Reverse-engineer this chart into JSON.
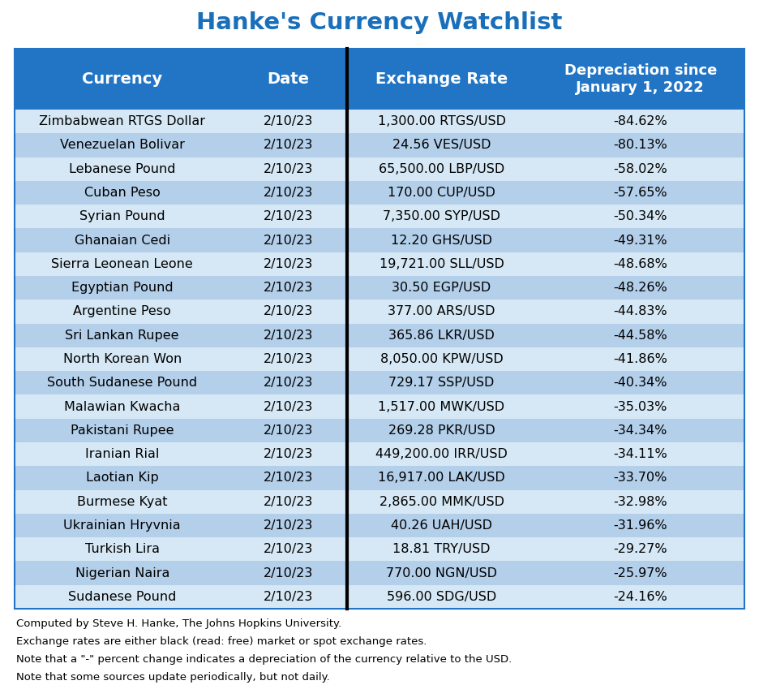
{
  "title": "Hanke's Currency Watchlist",
  "title_color": "#1a6fbb",
  "header_bg": "#2175c4",
  "header_text_color": "#ffffff",
  "col_headers": [
    "Currency",
    "Date",
    "Exchange Rate",
    "Depreciation since\nJanuary 1, 2022"
  ],
  "rows": [
    [
      "Zimbabwean RTGS Dollar",
      "2/10/23",
      "1,300.00 RTGS/USD",
      "-84.62%"
    ],
    [
      "Venezuelan Bolivar",
      "2/10/23",
      "24.56 VES/USD",
      "-80.13%"
    ],
    [
      "Lebanese Pound",
      "2/10/23",
      "65,500.00 LBP/USD",
      "-58.02%"
    ],
    [
      "Cuban Peso",
      "2/10/23",
      "170.00 CUP/USD",
      "-57.65%"
    ],
    [
      "Syrian Pound",
      "2/10/23",
      "7,350.00 SYP/USD",
      "-50.34%"
    ],
    [
      "Ghanaian Cedi",
      "2/10/23",
      "12.20 GHS/USD",
      "-49.31%"
    ],
    [
      "Sierra Leonean Leone",
      "2/10/23",
      "19,721.00 SLL/USD",
      "-48.68%"
    ],
    [
      "Egyptian Pound",
      "2/10/23",
      "30.50 EGP/USD",
      "-48.26%"
    ],
    [
      "Argentine Peso",
      "2/10/23",
      "377.00 ARS/USD",
      "-44.83%"
    ],
    [
      "Sri Lankan Rupee",
      "2/10/23",
      "365.86 LKR/USD",
      "-44.58%"
    ],
    [
      "North Korean Won",
      "2/10/23",
      "8,050.00 KPW/USD",
      "-41.86%"
    ],
    [
      "South Sudanese Pound",
      "2/10/23",
      "729.17 SSP/USD",
      "-40.34%"
    ],
    [
      "Malawian Kwacha",
      "2/10/23",
      "1,517.00 MWK/USD",
      "-35.03%"
    ],
    [
      "Pakistani Rupee",
      "2/10/23",
      "269.28 PKR/USD",
      "-34.34%"
    ],
    [
      "Iranian Rial",
      "2/10/23",
      "449,200.00 IRR/USD",
      "-34.11%"
    ],
    [
      "Laotian Kip",
      "2/10/23",
      "16,917.00 LAK/USD",
      "-33.70%"
    ],
    [
      "Burmese Kyat",
      "2/10/23",
      "2,865.00 MMK/USD",
      "-32.98%"
    ],
    [
      "Ukrainian Hryvnia",
      "2/10/23",
      "40.26 UAH/USD",
      "-31.96%"
    ],
    [
      "Turkish Lira",
      "2/10/23",
      "18.81 TRY/USD",
      "-29.27%"
    ],
    [
      "Nigerian Naira",
      "2/10/23",
      "770.00 NGN/USD",
      "-25.97%"
    ],
    [
      "Sudanese Pound",
      "2/10/23",
      "596.00 SDG/USD",
      "-24.16%"
    ]
  ],
  "row_bg_odd": "#d6e8f5",
  "row_bg_even": "#b3cfea",
  "footer_lines": [
    "Computed by Steve H. Hanke, The Johns Hopkins University.",
    "Exchange rates are either black (read: free) market or spot exchange rates.",
    "Note that a \"-\" percent change indicates a depreciation of the currency relative to the USD.",
    "Note that some sources update periodically, but not daily."
  ],
  "footer_color": "#000000",
  "border_color": "#2175c4",
  "divider_color": "#000000",
  "fig_width": 9.36,
  "fig_height": 8.6,
  "dpi": 100
}
